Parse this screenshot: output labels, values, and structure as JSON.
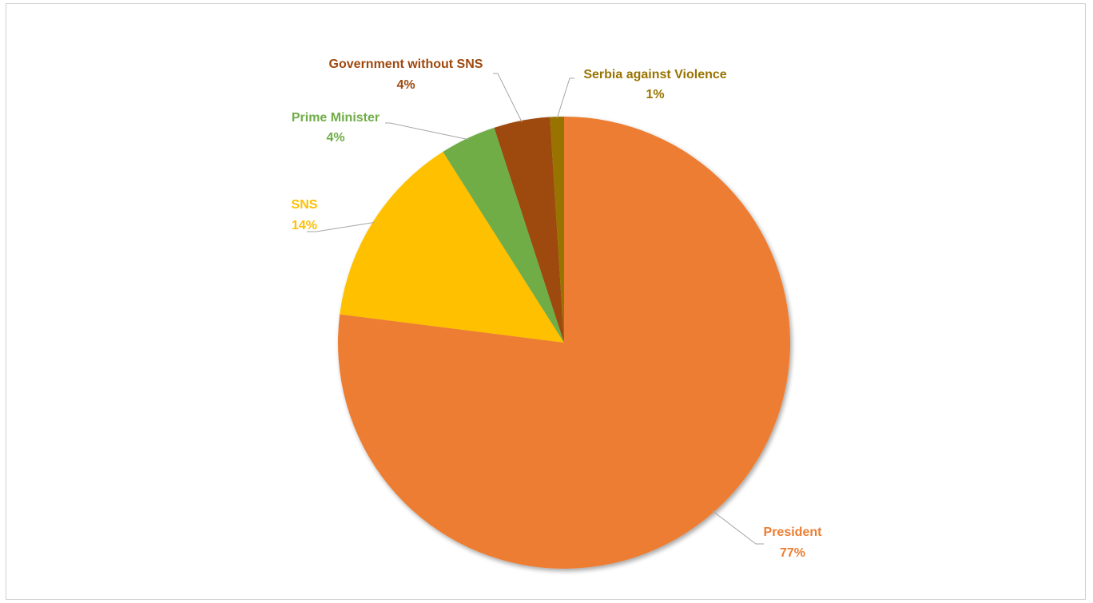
{
  "chart_data": {
    "type": "pie",
    "title": "",
    "slices": [
      {
        "label": "President",
        "value": 77,
        "value_label": "77%",
        "color": "#ED7D31",
        "label_color": "#ED7D31"
      },
      {
        "label": "SNS",
        "value": 14,
        "value_label": "14%",
        "color": "#FFC000",
        "label_color": "#FFC000"
      },
      {
        "label": "Prime Minister",
        "value": 4,
        "value_label": "4%",
        "color": "#70AD47",
        "label_color": "#70AD47"
      },
      {
        "label": "Government without SNS",
        "value": 4,
        "value_label": "4%",
        "color": "#9E480E",
        "label_color": "#9E480E"
      },
      {
        "label": "Serbia against Violence",
        "value": 1,
        "value_label": "1%",
        "color": "#997300",
        "label_color": "#997300"
      }
    ],
    "start_angle": "12 o'clock",
    "direction": "clockwise",
    "legend": "none",
    "data_labels": "outside with leader lines"
  }
}
